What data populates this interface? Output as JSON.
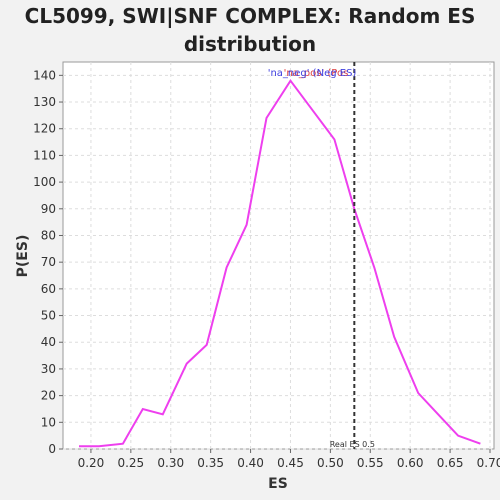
{
  "chart_data": {
    "type": "line",
    "title_lines": [
      "CL5099, SWI|SNF COMPLEX: Random ES",
      "distribution"
    ],
    "xlabel": "ES",
    "ylabel": "P(ES)",
    "xlim": [
      0.165,
      0.705
    ],
    "ylim": [
      0,
      145
    ],
    "xticks": [
      0.2,
      0.25,
      0.3,
      0.35,
      0.4,
      0.45,
      0.5,
      0.55,
      0.6,
      0.65,
      0.7
    ],
    "xtick_labels": [
      "0.20",
      "0.25",
      "0.30",
      "0.35",
      "0.40",
      "0.45",
      "0.50",
      "0.55",
      "0.60",
      "0.65",
      "0.70"
    ],
    "yticks": [
      0,
      10,
      20,
      30,
      40,
      50,
      60,
      70,
      80,
      90,
      100,
      110,
      120,
      130,
      140
    ],
    "grid": true,
    "series": [
      {
        "color": "#ee3fee",
        "x": [
          0.185,
          0.21,
          0.24,
          0.265,
          0.29,
          0.32,
          0.345,
          0.37,
          0.395,
          0.42,
          0.45,
          0.48,
          0.505,
          0.53,
          0.555,
          0.58,
          0.61,
          0.635,
          0.66,
          0.688
        ],
        "y": [
          1,
          1,
          2,
          15,
          13,
          32,
          39,
          68,
          84,
          124,
          138,
          126,
          116,
          90,
          68,
          42,
          21,
          13,
          5,
          2
        ]
      }
    ],
    "real_es": 0.53,
    "real_es_label": "Real ES 0.5",
    "annotations": [
      {
        "text": "'na_pos' (Pos",
        "color": "#e04040"
      },
      {
        "text": "'na_neg' (Neg ES)",
        "color": "#4040e0"
      }
    ]
  }
}
